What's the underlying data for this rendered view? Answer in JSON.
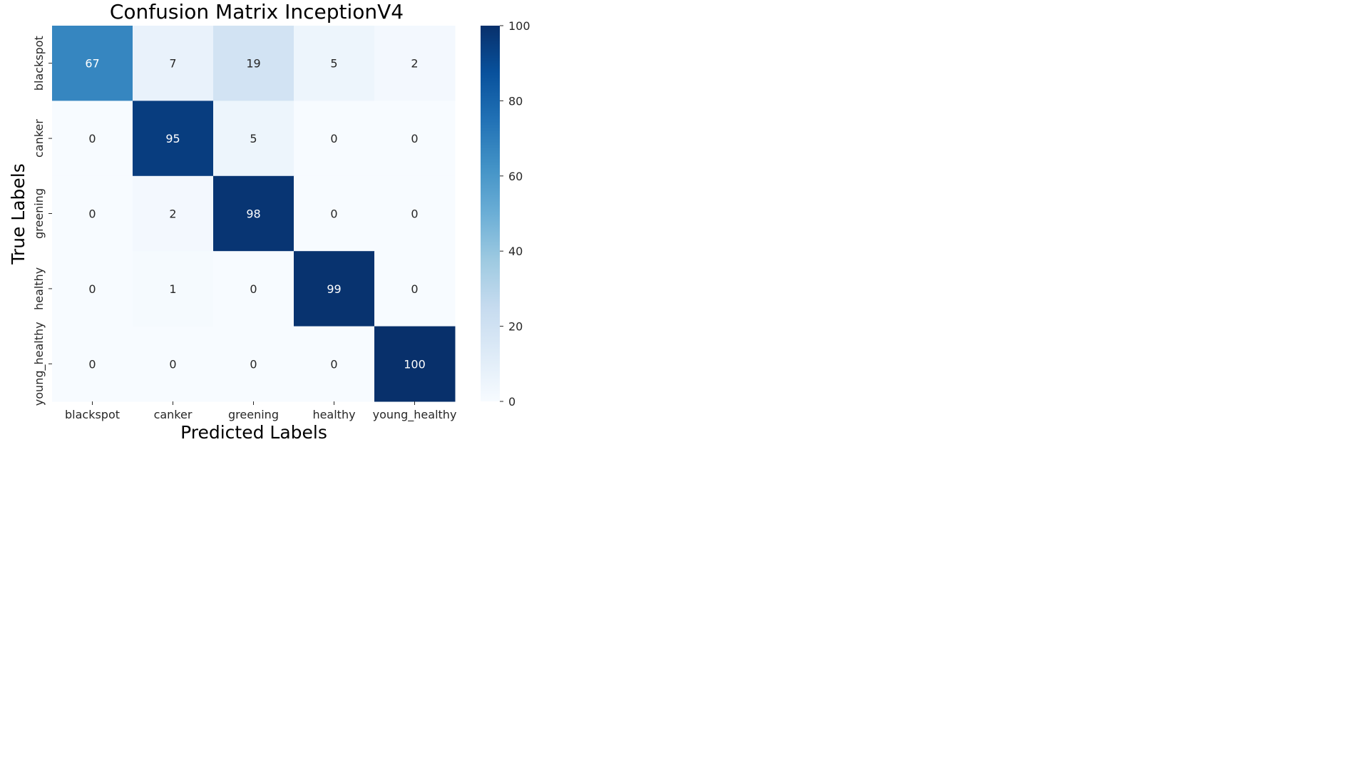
{
  "chart_data": {
    "type": "heatmap",
    "title": "Confusion Matrix InceptionV4",
    "xlabel": "Predicted Labels",
    "ylabel": "True Labels",
    "x_categories": [
      "blackspot",
      "canker",
      "greening",
      "healthy",
      "young_healthy"
    ],
    "y_categories": [
      "blackspot",
      "canker",
      "greening",
      "healthy",
      "young_healthy"
    ],
    "values": [
      [
        67,
        7,
        19,
        5,
        2
      ],
      [
        0,
        95,
        5,
        0,
        0
      ],
      [
        0,
        2,
        98,
        0,
        0
      ],
      [
        0,
        1,
        0,
        99,
        0
      ],
      [
        0,
        0,
        0,
        0,
        100
      ]
    ],
    "colorbar": {
      "min": 0,
      "max": 100,
      "ticks": [
        0,
        20,
        40,
        60,
        80,
        100
      ]
    },
    "colormap": "Blues",
    "colors": {
      "low": "#f7fbff",
      "high": "#08306b"
    }
  }
}
